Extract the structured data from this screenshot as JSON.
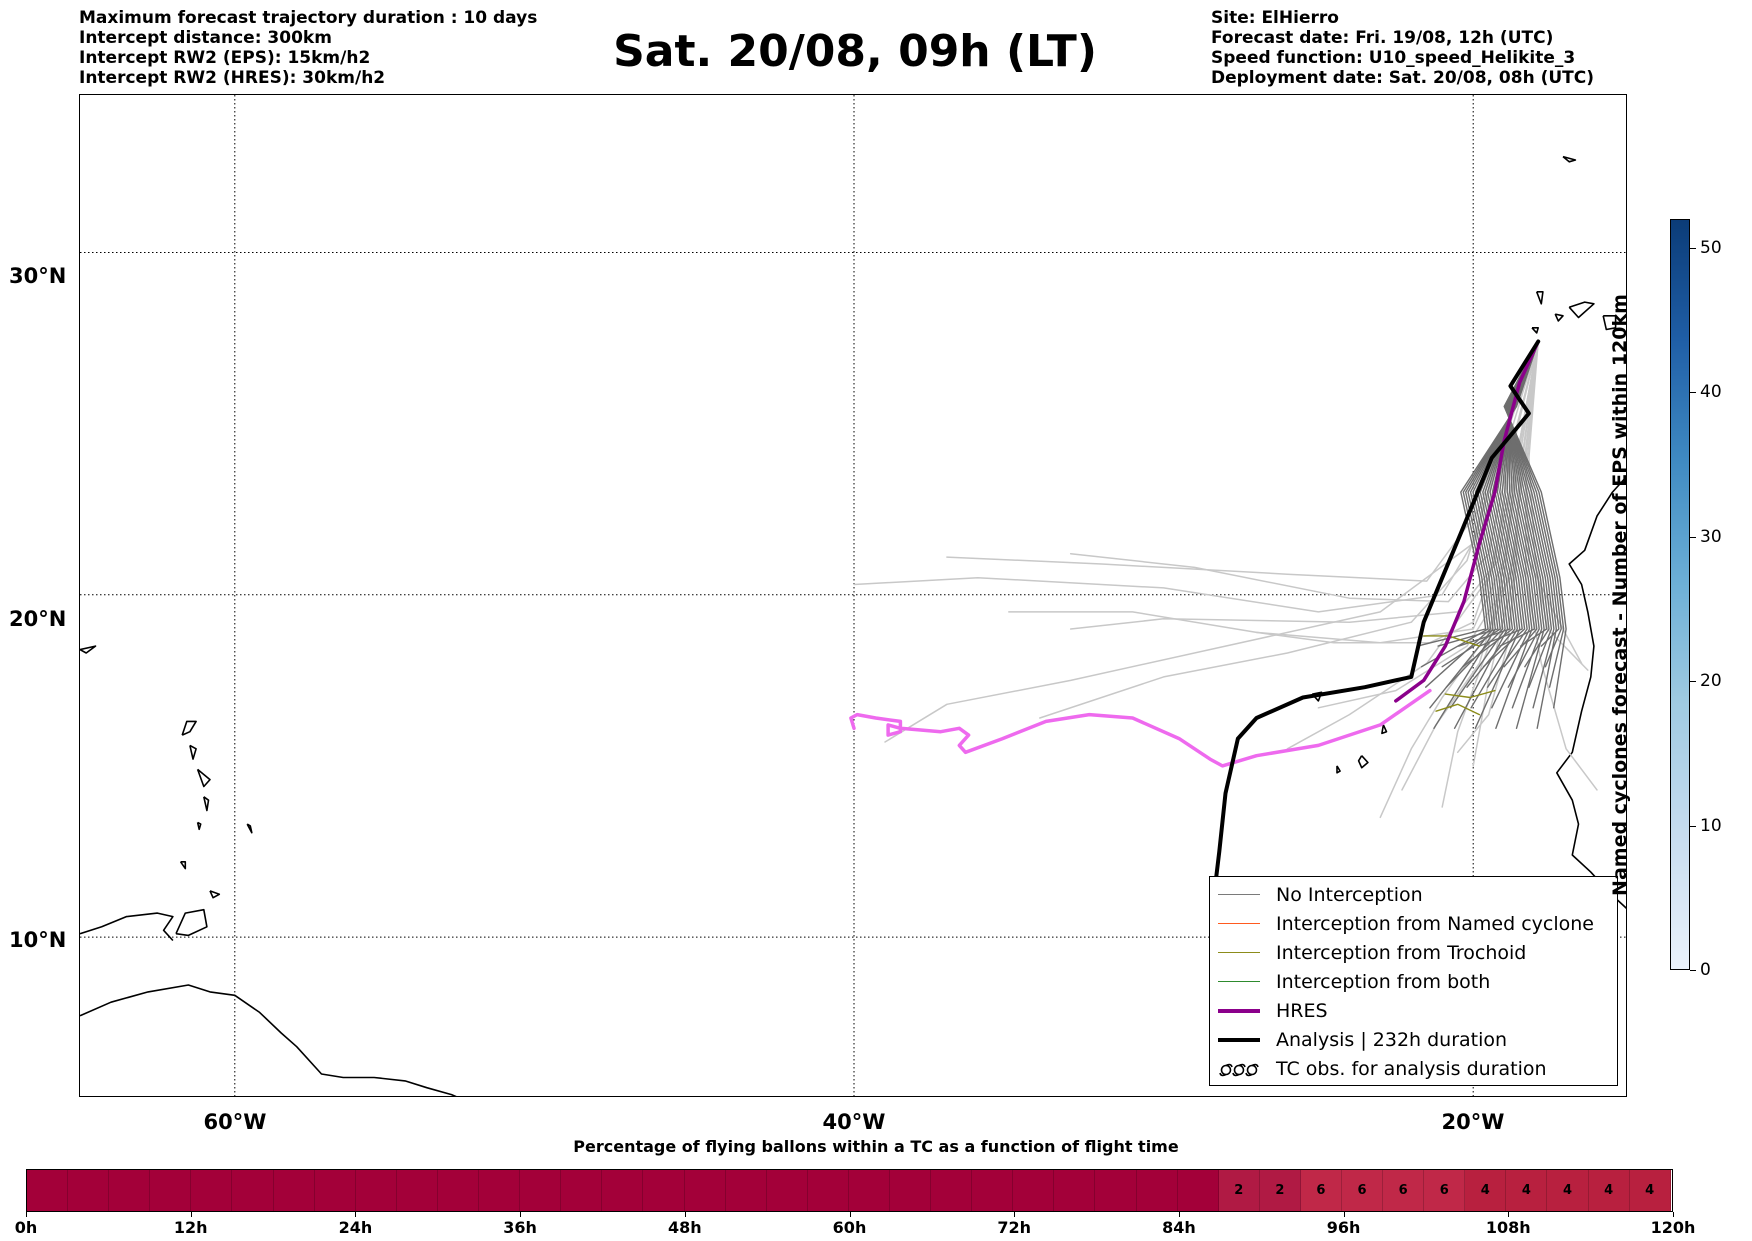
{
  "header": {
    "left_lines": [
      "Maximum forecast trajectory duration : 10 days",
      "Intercept distance: 300km",
      "Intercept RW2 (EPS):  15km/h2",
      "Intercept RW2 (HRES): 30km/h2"
    ],
    "title": "Sat. 20/08, 09h (LT)",
    "right_lines": [
      "Site: ElHierro",
      "Forecast date: Fri. 19/08, 12h (UTC)",
      "Speed function: U10_speed_Helikite_3",
      "Deployment date: Sat. 20/08, 08h (UTC)"
    ]
  },
  "map": {
    "extent": {
      "lon_min": -65,
      "lon_max": -15,
      "lat_min": 5.3,
      "lat_max": 34.6
    },
    "lat_labels": [
      "30°N",
      "20°N",
      "10°N"
    ],
    "lat_values": [
      30,
      20,
      10
    ],
    "lon_labels": [
      "60°W",
      "40°W",
      "20°W"
    ],
    "lon_values": [
      -60,
      -40,
      -20
    ],
    "colors": {
      "no_interception": "#6e6e6e",
      "no_interception_light": "#c8c8c8",
      "named_cyclone": "#ff5a1f",
      "trochoid": "#8c8c1a",
      "both": "#2e8b2e",
      "hres": "#8b008b",
      "hres_extension": "#ee6aee",
      "analysis": "#000000"
    },
    "release_site": {
      "lon": -18.0,
      "lat": 27.5
    }
  },
  "legend": {
    "items": [
      {
        "label": "No Interception",
        "color": "#7a7a7a",
        "width": 1.2,
        "style": "line"
      },
      {
        "label": "Interception from Named cyclone",
        "color": "#ff5a1f",
        "width": 1.2,
        "style": "line"
      },
      {
        "label": "Interception from Trochoid",
        "color": "#8c8c1a",
        "width": 1.2,
        "style": "line"
      },
      {
        "label": "Interception from both",
        "color": "#2e8b2e",
        "width": 1.2,
        "style": "line"
      },
      {
        "label": "HRES",
        "color": "#8b008b",
        "width": 3.5,
        "style": "line"
      },
      {
        "label": "Analysis | 232h duration",
        "color": "#000000",
        "width": 3.5,
        "style": "line"
      },
      {
        "label": "TC obs. for analysis duration",
        "color": "#000000",
        "width": 1,
        "style": "symbol"
      }
    ]
  },
  "colorbar": {
    "label": "Named cyclones forecast - Number of EPS within 120km",
    "min": 0,
    "max": 52,
    "ticks": [
      "0",
      "10",
      "20",
      "30",
      "40",
      "50"
    ],
    "tick_values": [
      0,
      10,
      20,
      30,
      40,
      50
    ]
  },
  "progress": {
    "title": "Percentage of flying ballons within a TC as a function of flight time",
    "tick_labels": [
      "0h",
      "12h",
      "24h",
      "36h",
      "48h",
      "60h",
      "72h",
      "84h",
      "96h",
      "108h",
      "120h"
    ],
    "tick_hours": [
      0,
      12,
      24,
      36,
      48,
      60,
      72,
      84,
      96,
      108,
      120
    ],
    "step_hours": 3,
    "cells": [
      "",
      "",
      "",
      "",
      "",
      "",
      "",
      "",
      "",
      "",
      "",
      "",
      "",
      "",
      "",
      "",
      "",
      "",
      "",
      "",
      "",
      "",
      "",
      "",
      "",
      "",
      "",
      "",
      "",
      "2",
      "2",
      "6",
      "6",
      "6",
      "6",
      "4",
      "4",
      "4",
      "4",
      "4"
    ],
    "colors": {
      "empty": "#a30039",
      "value_2": "#b01a44",
      "value_6": "#c02848",
      "value_4": "#b8203f"
    }
  }
}
